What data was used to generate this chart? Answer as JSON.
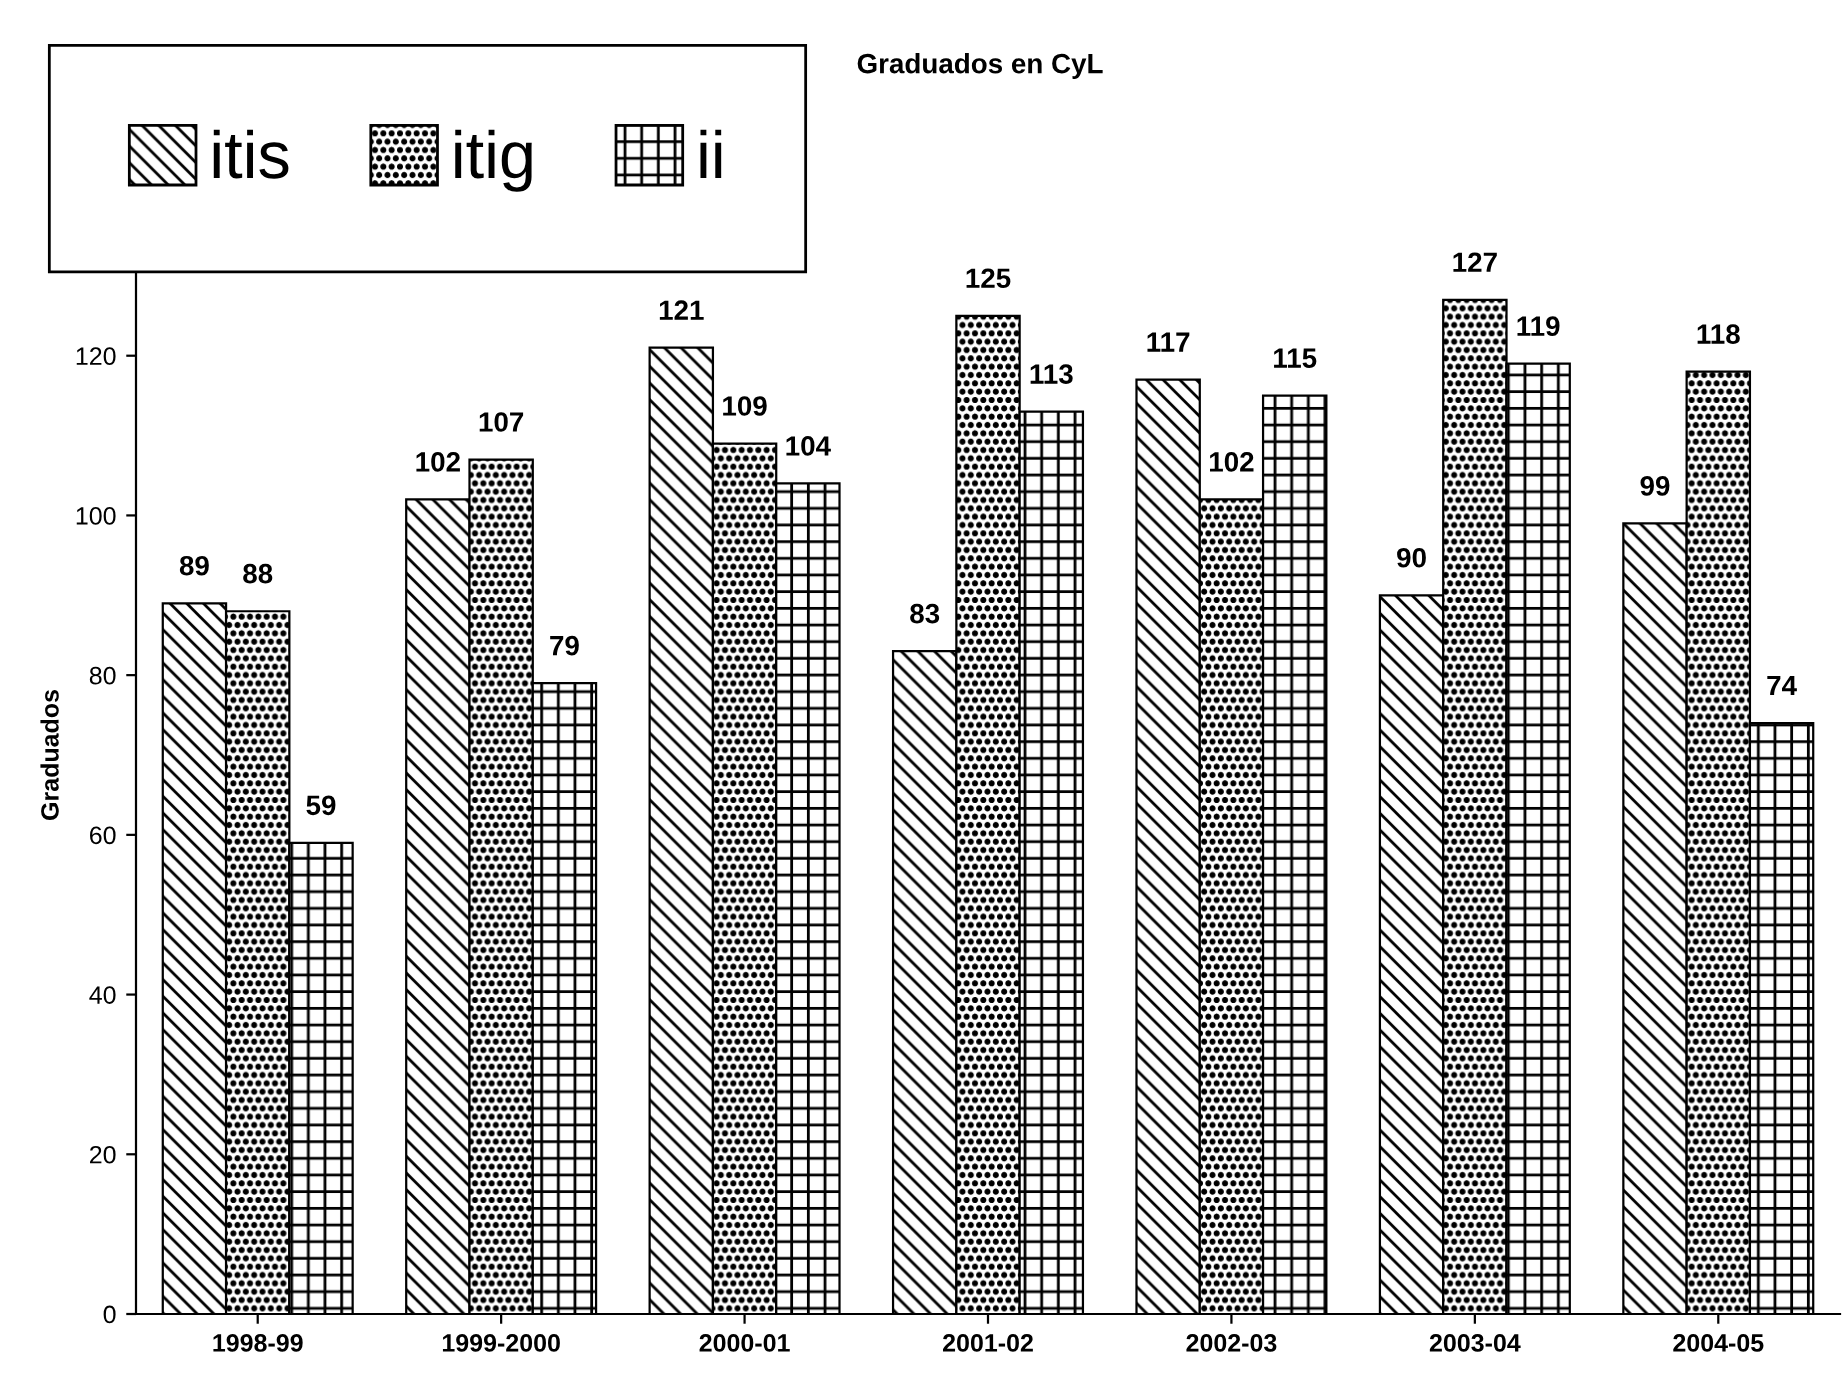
{
  "chart_data": {
    "type": "bar",
    "title": "Graduados en CyL",
    "ylabel": "Graduados",
    "categories": [
      "1998-99",
      "1999-2000",
      "2000-01",
      "2001-02",
      "2002-03",
      "2003-04",
      "2004-05"
    ],
    "series": [
      {
        "name": "itis",
        "color": "#000000",
        "values": [
          89,
          102,
          121,
          83,
          117,
          90,
          99
        ]
      },
      {
        "name": "itig",
        "color": "#000000",
        "values": [
          88,
          107,
          109,
          125,
          102,
          127,
          118
        ]
      },
      {
        "name": "ii",
        "color": "#000000",
        "values": [
          59,
          79,
          104,
          113,
          115,
          119,
          74
        ]
      }
    ],
    "ylim": [
      0,
      140
    ],
    "yticks": [
      0,
      20,
      40,
      60,
      80,
      100,
      120
    ],
    "grid": false,
    "legend": "top left",
    "data_labels": true
  }
}
